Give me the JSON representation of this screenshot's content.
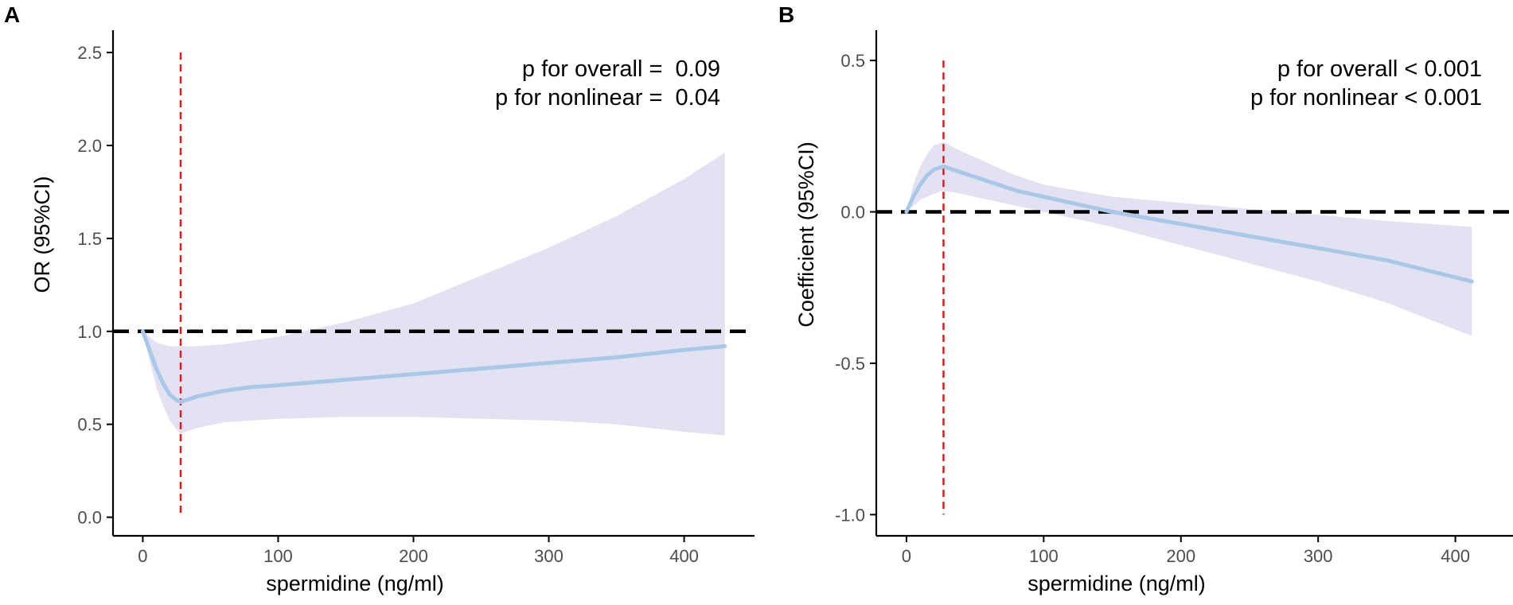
{
  "colors": {
    "ci_band": "#e2e2f2",
    "curve": "#a9c8e8",
    "reference_line": "#000000",
    "threshold_line": "#e31a1c",
    "axis": "#000000",
    "tick_text": "#4d4d4d"
  },
  "chart_data": [
    {
      "panel_label": "A",
      "type": "line",
      "title": "",
      "xlabel": "spermidine (ng/ml)",
      "ylabel": "OR (95%CI)",
      "xlim": [
        -22,
        452
      ],
      "ylim": [
        -0.1,
        2.62
      ],
      "x_ticks": [
        0,
        100,
        200,
        300,
        400
      ],
      "x_tick_labels": [
        "0",
        "100",
        "200",
        "300",
        "400"
      ],
      "y_ticks": [
        0.0,
        0.5,
        1.0,
        1.5,
        2.0,
        2.5
      ],
      "y_tick_labels": [
        "0.0",
        "0.5",
        "1.0",
        "1.5",
        "2.0",
        "2.5"
      ],
      "reference_y": 1.0,
      "threshold_x": 28,
      "threshold_y_range": [
        0.0,
        2.5
      ],
      "annotations": [
        "p for overall =  0.09",
        "p for nonlinear =  0.04"
      ],
      "series": [
        {
          "name": "OR",
          "x": [
            0,
            5,
            10,
            15,
            20,
            25,
            28,
            40,
            60,
            80,
            100,
            150,
            200,
            250,
            300,
            350,
            400,
            430
          ],
          "y": [
            1.0,
            0.9,
            0.8,
            0.72,
            0.66,
            0.63,
            0.62,
            0.65,
            0.68,
            0.7,
            0.71,
            0.74,
            0.77,
            0.8,
            0.83,
            0.86,
            0.9,
            0.92
          ]
        },
        {
          "name": "CI lower",
          "x": [
            0,
            5,
            10,
            15,
            20,
            25,
            28,
            40,
            60,
            80,
            100,
            150,
            200,
            250,
            300,
            350,
            400,
            430
          ],
          "y": [
            1.0,
            0.84,
            0.7,
            0.6,
            0.52,
            0.47,
            0.45,
            0.48,
            0.51,
            0.52,
            0.53,
            0.54,
            0.54,
            0.53,
            0.52,
            0.5,
            0.46,
            0.44
          ]
        },
        {
          "name": "CI upper",
          "x": [
            0,
            5,
            10,
            15,
            20,
            25,
            28,
            40,
            60,
            80,
            100,
            150,
            200,
            250,
            300,
            350,
            400,
            430
          ],
          "y": [
            1.0,
            0.97,
            0.94,
            0.93,
            0.92,
            0.92,
            0.92,
            0.92,
            0.93,
            0.95,
            0.97,
            1.05,
            1.15,
            1.3,
            1.45,
            1.62,
            1.82,
            1.96
          ]
        }
      ]
    },
    {
      "panel_label": "B",
      "type": "line",
      "title": "",
      "xlabel": "spermidine (ng/ml)",
      "ylabel": "Coefficient (95%CI)",
      "xlim": [
        -22,
        442
      ],
      "ylim": [
        -1.07,
        0.6
      ],
      "x_ticks": [
        0,
        100,
        200,
        300,
        400
      ],
      "x_tick_labels": [
        "0",
        "100",
        "200",
        "300",
        "400"
      ],
      "y_ticks": [
        -1.0,
        -0.5,
        0.0,
        0.5
      ],
      "y_tick_labels": [
        "-1.0",
        "-0.5",
        "0.0",
        "0.5"
      ],
      "reference_y": 0.0,
      "threshold_x": 27,
      "threshold_y_range": [
        -1.0,
        0.5
      ],
      "annotations": [
        "p for overall < 0.001",
        "p for nonlinear < 0.001"
      ],
      "series": [
        {
          "name": "Coefficient",
          "x": [
            0,
            5,
            10,
            15,
            20,
            27,
            40,
            60,
            80,
            100,
            150,
            200,
            250,
            300,
            350,
            412
          ],
          "y": [
            0.0,
            0.05,
            0.09,
            0.12,
            0.14,
            0.15,
            0.13,
            0.1,
            0.07,
            0.05,
            0.0,
            -0.04,
            -0.08,
            -0.12,
            -0.16,
            -0.23
          ]
        },
        {
          "name": "CI lower",
          "x": [
            0,
            5,
            10,
            15,
            20,
            27,
            40,
            60,
            80,
            100,
            150,
            200,
            250,
            300,
            350,
            412
          ],
          "y": [
            0.0,
            0.02,
            0.04,
            0.05,
            0.06,
            0.07,
            0.06,
            0.04,
            0.02,
            0.0,
            -0.05,
            -0.11,
            -0.17,
            -0.23,
            -0.3,
            -0.41
          ]
        },
        {
          "name": "CI upper",
          "x": [
            0,
            5,
            10,
            15,
            20,
            27,
            40,
            60,
            80,
            100,
            150,
            200,
            250,
            300,
            350,
            412
          ],
          "y": [
            0.0,
            0.09,
            0.15,
            0.19,
            0.22,
            0.23,
            0.2,
            0.16,
            0.12,
            0.09,
            0.05,
            0.03,
            0.01,
            -0.01,
            -0.03,
            -0.05
          ]
        }
      ]
    }
  ]
}
